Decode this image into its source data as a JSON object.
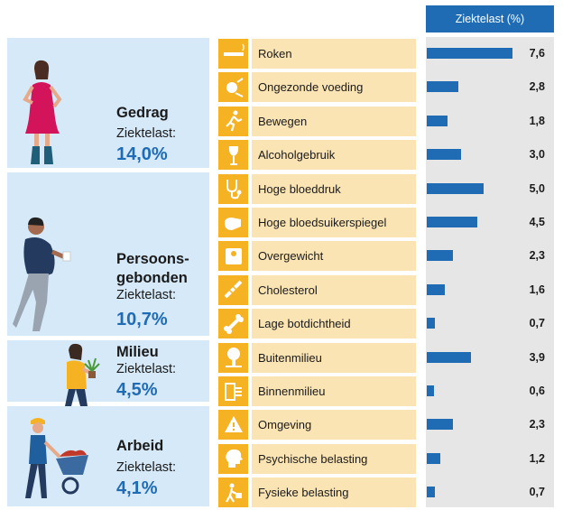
{
  "chart_data": {
    "type": "bar",
    "header": "Ziektelast (%)",
    "xlim": [
      0,
      8.2
    ],
    "categories": [
      {
        "name": "Gedrag",
        "sub": "Ziektelast:",
        "value": "14,0%",
        "person": "woman-figure"
      },
      {
        "name_lines": [
          "Persoons-",
          "gebonden"
        ],
        "sub": "Ziektelast:",
        "value": "10,7%",
        "person": "overweight-man-figure"
      },
      {
        "name": "Milieu",
        "sub": "Ziektelast:",
        "value": "4,5%",
        "person": "woman-with-plant-figure"
      },
      {
        "name": "Arbeid",
        "sub": "Ziektelast:",
        "value": "4,1%",
        "person": "worker-with-wheelbarrow-figure"
      }
    ],
    "rows": [
      {
        "label": "Roken",
        "value": 7.6,
        "display": "7,6",
        "icon": "cigarette-icon"
      },
      {
        "label": "Ongezonde voeding",
        "value": 2.8,
        "display": "2,8",
        "icon": "food-icon"
      },
      {
        "label": "Bewegen",
        "value": 1.8,
        "display": "1,8",
        "icon": "running-icon"
      },
      {
        "label": "Alcoholgebruik",
        "value": 3.0,
        "display": "3,0",
        "icon": "wine-glass-icon"
      },
      {
        "label": "Hoge bloeddruk",
        "value": 5.0,
        "display": "5,0",
        "icon": "stethoscope-icon"
      },
      {
        "label": "Hoge bloedsuikerspiegel",
        "value": 4.5,
        "display": "4,5",
        "icon": "glucose-meter-icon"
      },
      {
        "label": "Overgewicht",
        "value": 2.3,
        "display": "2,3",
        "icon": "scale-icon"
      },
      {
        "label": "Cholesterol",
        "value": 1.6,
        "display": "1,6",
        "icon": "artery-icon"
      },
      {
        "label": "Lage botdichtheid",
        "value": 0.7,
        "display": "0,7",
        "icon": "bone-icon"
      },
      {
        "label": "Buitenmilieu",
        "value": 3.9,
        "display": "3,9",
        "icon": "tree-icon"
      },
      {
        "label": "Binnenmilieu",
        "value": 0.6,
        "display": "0,6",
        "icon": "indoor-icon"
      },
      {
        "label": "Omgeving",
        "value": 2.3,
        "display": "2,3",
        "icon": "hazard-icon"
      },
      {
        "label": "Psychische belasting",
        "value": 1.2,
        "display": "1,2",
        "icon": "head-icon"
      },
      {
        "label": "Fysieke belasting",
        "value": 0.7,
        "display": "0,7",
        "icon": "lifting-icon"
      }
    ]
  },
  "colors": {
    "bar": "#1f6cb4",
    "icon_bg": "#f5b324",
    "label_bg": "#fbe4b3",
    "category_bg": "#d5e9f8",
    "bar_bg": "#e6e6e6"
  }
}
